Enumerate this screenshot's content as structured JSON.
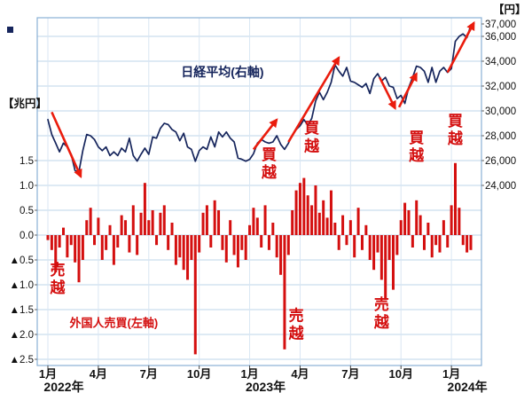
{
  "colors": {
    "bar": "#d40f0f",
    "line": "#16255c",
    "arrow": "#ea1c0d",
    "grid": "#bcd4ea",
    "border": "#8ab1d6",
    "axis_text": "#111111",
    "red_text": "#d40f0f",
    "navy_text": "#16255c"
  },
  "chart_data": {
    "type": "combo",
    "description": "Weekly Nikkei average (line, right axis, yen) vs foreign investors net buying/selling (bars, left axis, trillion yen), Jan 2022 - Feb 2024",
    "n_points": 110,
    "x_ticks": [
      {
        "week": 0,
        "label": "1月",
        "year": "2022年"
      },
      {
        "week": 13,
        "label": "4月"
      },
      {
        "week": 26,
        "label": "7月"
      },
      {
        "week": 39,
        "label": "10月"
      },
      {
        "week": 52,
        "label": "1月",
        "year": "2023年"
      },
      {
        "week": 65,
        "label": "4月"
      },
      {
        "week": 78,
        "label": "7月"
      },
      {
        "week": 91,
        "label": "10月"
      },
      {
        "week": 104,
        "label": "1月",
        "year": "2024年"
      }
    ],
    "left_axis": {
      "unit": "【兆円】",
      "ticks": [
        {
          "v": 1.5,
          "label": "1.5"
        },
        {
          "v": 1.0,
          "label": "1.0"
        },
        {
          "v": 0.5,
          "label": "0.5"
        },
        {
          "v": 0.0,
          "label": "0.0"
        },
        {
          "v": -0.5,
          "label": "▲0.5"
        },
        {
          "v": -1.0,
          "label": "▲1.0"
        },
        {
          "v": -1.5,
          "label": "▲1.5"
        },
        {
          "v": -2.0,
          "label": "▲2.0"
        },
        {
          "v": -2.5,
          "label": "▲2.5"
        }
      ]
    },
    "right_axis": {
      "unit": "【円】",
      "ticks": [
        {
          "v": 37000,
          "label": "37,000"
        },
        {
          "v": 36000,
          "label": "36,000"
        },
        {
          "v": 34000,
          "label": "34,000"
        },
        {
          "v": 32000,
          "label": "32,000"
        },
        {
          "v": 30000,
          "label": "30,000"
        },
        {
          "v": 28000,
          "label": "28,000"
        },
        {
          "v": 26000,
          "label": "26,000"
        },
        {
          "v": 24000,
          "label": "24,000"
        }
      ]
    },
    "series": [
      {
        "name": "外国人売買(左軸)",
        "type": "bar",
        "axis": "left",
        "values": [
          -0.1,
          -0.3,
          -0.75,
          -0.25,
          0.15,
          -0.45,
          -0.2,
          -0.55,
          -0.95,
          -0.5,
          0.3,
          0.55,
          -0.2,
          0.35,
          -0.5,
          -0.3,
          0.2,
          -0.6,
          -0.25,
          0.4,
          0.3,
          -0.35,
          0.6,
          -0.4,
          0.45,
          1.05,
          0.3,
          0.5,
          -0.2,
          0.45,
          0.6,
          -0.3,
          0.25,
          -0.6,
          -0.45,
          -0.7,
          -0.9,
          -0.5,
          -2.4,
          -0.35,
          0.45,
          0.6,
          -0.25,
          0.7,
          0.5,
          -0.3,
          -0.55,
          0.3,
          -0.4,
          -0.65,
          -0.3,
          -0.5,
          0.2,
          0.55,
          0.35,
          -0.25,
          0.6,
          -0.3,
          0.25,
          -0.45,
          -0.8,
          -2.3,
          -0.4,
          0.5,
          0.9,
          1.05,
          1.15,
          0.8,
          0.6,
          1.0,
          0.45,
          0.7,
          0.35,
          0.9,
          0.25,
          -0.3,
          0.4,
          -0.2,
          0.3,
          -0.45,
          0.55,
          -0.3,
          0.2,
          -0.5,
          -0.7,
          -0.35,
          -0.9,
          -1.3,
          -0.5,
          -1.1,
          -0.4,
          0.3,
          0.65,
          0.5,
          -0.25,
          0.7,
          0.4,
          -0.3,
          0.25,
          -0.45,
          -0.2,
          -0.35,
          0.3,
          -0.25,
          0.6,
          1.45,
          0.55,
          -0.2,
          -0.35,
          -0.3
        ]
      },
      {
        "name": "日経平均(右軸)",
        "type": "line",
        "axis": "right",
        "values": [
          29300,
          28100,
          27400,
          26700,
          27400,
          27100,
          26500,
          25200,
          25100,
          26800,
          28100,
          28000,
          27700,
          27100,
          26800,
          27100,
          26400,
          26700,
          26400,
          27000,
          26700,
          27800,
          26400,
          25960,
          26500,
          27000,
          26500,
          27900,
          27800,
          28600,
          29000,
          28900,
          28500,
          28300,
          27600,
          28200,
          27100,
          26900,
          25940,
          26800,
          27100,
          26900,
          27900,
          27100,
          28300,
          27900,
          28300,
          27800,
          27500,
          26200,
          26100,
          25950,
          26100,
          26550,
          27400,
          27700,
          27500,
          27400,
          27500,
          28000,
          27300,
          26900,
          27400,
          28050,
          28500,
          28800,
          29300,
          28850,
          29400,
          30800,
          31500,
          30900,
          31500,
          32300,
          33700,
          33200,
          32800,
          33500,
          32400,
          32300,
          32100,
          31900,
          32200,
          31400,
          32600,
          33000,
          32400,
          32700,
          32000,
          31900,
          30990,
          31250,
          30600,
          31900,
          32700,
          33600,
          33500,
          33200,
          32300,
          33500,
          32300,
          33200,
          33500,
          33100,
          33400,
          35600,
          36000,
          36200,
          35900,
          36900
        ]
      }
    ],
    "annotations": [
      {
        "text": "日経平均(右軸)",
        "style": "navy",
        "week": 45,
        "axis": "right",
        "value": 32800,
        "vertical": false,
        "size": 14
      },
      {
        "text": "外国人売買(左軸)",
        "style": "red",
        "week": 17,
        "axis": "left",
        "value": -1.85,
        "vertical": false,
        "size": 13
      },
      {
        "text": "売越",
        "style": "red",
        "week": 2.5,
        "axis": "left",
        "value": -0.8,
        "vertical": true,
        "size": 17
      },
      {
        "text": "買越",
        "style": "red",
        "week": 57,
        "axis": "left",
        "value": 1.52,
        "vertical": true,
        "size": 17
      },
      {
        "text": "買越",
        "style": "red",
        "week": 68,
        "axis": "left",
        "value": 2.05,
        "vertical": true,
        "size": 17
      },
      {
        "text": "売越",
        "style": "red",
        "week": 64,
        "axis": "left",
        "value": -1.72,
        "vertical": true,
        "size": 17
      },
      {
        "text": "売越",
        "style": "red",
        "week": 86,
        "axis": "left",
        "value": -1.5,
        "vertical": true,
        "size": 17
      },
      {
        "text": "買越",
        "style": "red",
        "week": 95,
        "axis": "left",
        "value": 1.86,
        "vertical": true,
        "size": 17
      },
      {
        "text": "買越",
        "style": "red",
        "week": 105,
        "axis": "left",
        "value": 2.2,
        "vertical": true,
        "size": 17
      }
    ],
    "arrows": [
      {
        "from_week": 1,
        "from_val": 29900,
        "to_week": 8.5,
        "to_val": 24700
      },
      {
        "from_week": 53,
        "from_val": 26900,
        "to_week": 59,
        "to_val": 29300
      },
      {
        "from_week": 62,
        "from_val": 27500,
        "to_week": 75,
        "to_val": 34300
      },
      {
        "from_week": 85.5,
        "from_val": 32700,
        "to_week": 89.5,
        "to_val": 30200
      },
      {
        "from_week": 90.5,
        "from_val": 30300,
        "to_week": 95,
        "to_val": 33000
      },
      {
        "from_week": 103,
        "from_val": 33100,
        "to_week": 109.8,
        "to_val": 37100
      }
    ]
  }
}
